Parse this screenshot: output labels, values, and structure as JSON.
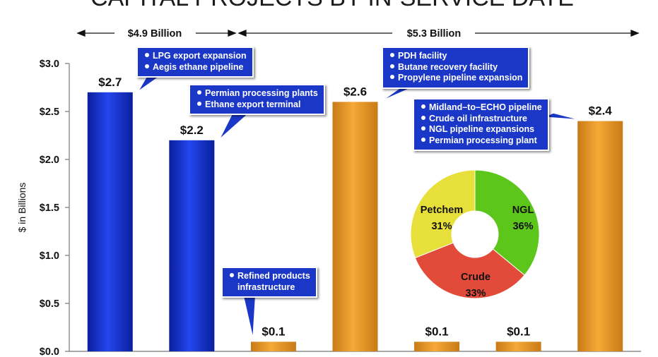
{
  "title": "CAPITAL PROJECTS BY IN-SERVICE DATE",
  "colors": {
    "blue_bar": "#1533d6",
    "orange_bar": "#f0a02c",
    "callout_bg": "#1a37c8"
  },
  "chart_data": [
    {
      "type": "bar",
      "ylabel": "$ in Billions",
      "ylim": [
        0,
        3.0
      ],
      "yticks": [
        "$0.0",
        "$0.5",
        "$1.0",
        "$1.5",
        "$2.0",
        "$2.5",
        "$3.0"
      ],
      "values": [
        2.7,
        2.2,
        0.1,
        2.6,
        0.1,
        0.1,
        2.4
      ],
      "labels": [
        "$2.7",
        "$2.2",
        "$0.1",
        "$2.6",
        "$0.1",
        "$0.1",
        "$2.4"
      ],
      "bar_colors": [
        "blue",
        "blue",
        "orange",
        "orange",
        "orange",
        "orange",
        "orange"
      ],
      "spans": [
        {
          "label": "$4.9 Billion"
        },
        {
          "label": "$5.3 Billion"
        }
      ],
      "callouts": [
        {
          "lines": [
            "LPG export expansion",
            "Aegis ethane pipeline"
          ]
        },
        {
          "lines": [
            "Permian processing plants",
            "Ethane export terminal"
          ]
        },
        {
          "lines": [
            "Refined products",
            "infrastructure"
          ]
        },
        {
          "lines": [
            "PDH facility",
            "Butane recovery facility",
            "Propylene pipeline expansion"
          ]
        },
        {
          "lines": [
            "Midland–to–ECHO pipeline",
            "Crude oil  infrastructure",
            "NGL pipeline expansions",
            "Permian processing plant"
          ]
        }
      ]
    },
    {
      "type": "pie",
      "slices": [
        {
          "name": "NGL",
          "value": 36,
          "label": "36%",
          "color": "#5cc61a"
        },
        {
          "name": "Crude",
          "value": 33,
          "label": "33%",
          "color": "#e24a3a"
        },
        {
          "name": "Petchem",
          "value": 31,
          "label": "31%",
          "color": "#e8e03a"
        }
      ]
    }
  ]
}
